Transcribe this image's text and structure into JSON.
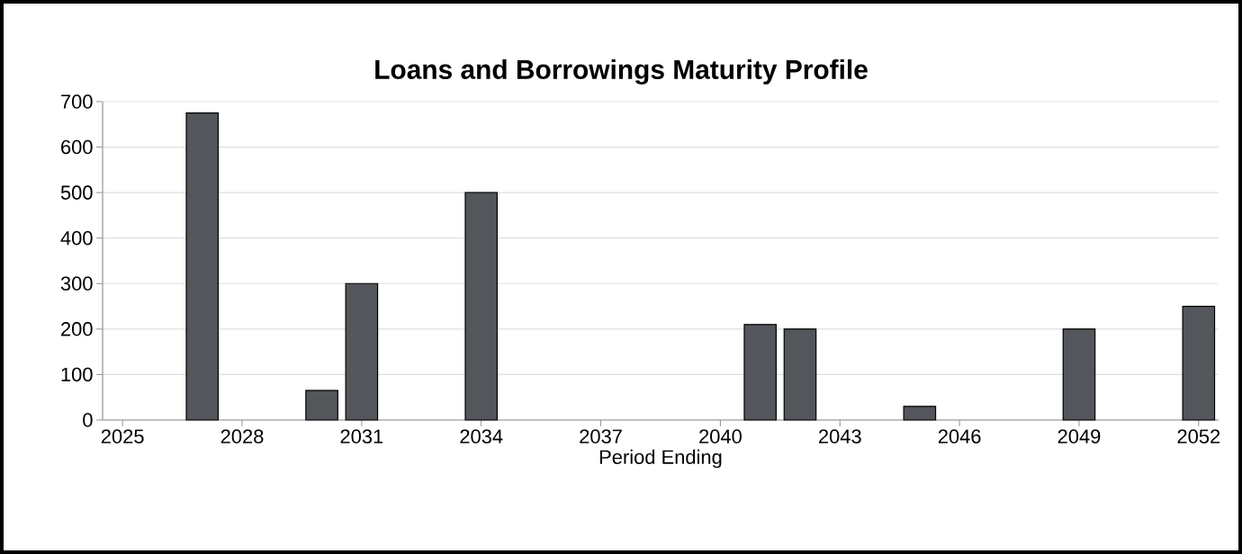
{
  "chart_data": {
    "type": "bar",
    "title": "Loans and Borrowings Maturity Profile",
    "xlabel": "Period Ending",
    "x": [
      2027,
      2030,
      2031,
      2034,
      2041,
      2042,
      2045,
      2049,
      2052
    ],
    "values": [
      675,
      65,
      300,
      500,
      210,
      200,
      30,
      200,
      250
    ],
    "color": "#53565a",
    "xlim": [
      2024.5,
      2052.5
    ],
    "ylim": [
      0,
      700
    ],
    "xticks": [
      2025,
      2028,
      2031,
      2034,
      2037,
      2040,
      2043,
      2046,
      2049,
      2052
    ],
    "yticks": [
      0,
      100,
      200,
      300,
      400,
      500,
      600,
      700
    ],
    "grid": "y"
  }
}
